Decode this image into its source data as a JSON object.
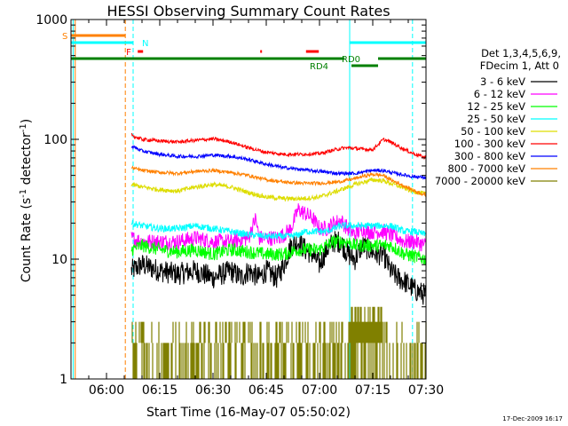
{
  "chart_data": {
    "type": "line",
    "title": "HESSI Observing Summary Count Rates",
    "xlabel": "Start Time (16-May-07 05:50:02)",
    "ylabel_main": "Count Rate (s",
    "ylabel_sup1": "-1",
    "ylabel_mid": " detector",
    "ylabel_sup2": "-1",
    "ylabel_end": ")",
    "yscale": "log",
    "ylim": [
      1,
      1000
    ],
    "xlim_minutes": [
      0,
      100
    ],
    "x_ticks": [
      {
        "label": "06:00",
        "t": 10
      },
      {
        "label": "06:15",
        "t": 25
      },
      {
        "label": "06:30",
        "t": 40
      },
      {
        "label": "06:45",
        "t": 55
      },
      {
        "label": "07:00",
        "t": 70
      },
      {
        "label": "07:15",
        "t": 85
      },
      {
        "label": "07:30",
        "t": 100
      }
    ],
    "y_ticks": [
      {
        "label": "1",
        "v": 1
      },
      {
        "label": "10",
        "v": 10
      },
      {
        "label": "100",
        "v": 100
      },
      {
        "label": "1000",
        "v": 1000
      }
    ],
    "legend_header": [
      "Det 1,3,4,5,6,9,",
      "FDecim 1, Att 0"
    ],
    "series": [
      {
        "name": "3 - 6 keV",
        "color": "#000000",
        "noise": 0.1,
        "t": [
          17,
          20,
          25,
          30,
          35,
          40,
          45,
          48,
          50,
          53,
          55,
          58,
          60,
          62,
          64,
          66,
          68,
          70,
          72,
          74,
          76,
          78,
          80,
          82,
          84,
          86,
          88,
          90,
          92,
          94,
          97,
          100
        ],
        "v": [
          8,
          9,
          8,
          7.5,
          8,
          7,
          8,
          7,
          8,
          7,
          8,
          7,
          9,
          13,
          14,
          12,
          11,
          9,
          12,
          14,
          14,
          11,
          10,
          13,
          12,
          11,
          11,
          8,
          7,
          6.5,
          5.5,
          5
        ]
      },
      {
        "name": "6 - 12 keV",
        "color": "#ff00ff",
        "noise": 0.07,
        "t": [
          17,
          20,
          25,
          30,
          35,
          40,
          45,
          50,
          52,
          53,
          55,
          58,
          60,
          62,
          64,
          66,
          68,
          70,
          72,
          74,
          76,
          78,
          80,
          82,
          84,
          86,
          88,
          90,
          92,
          94,
          97,
          100
        ],
        "v": [
          15,
          14,
          14,
          14,
          15,
          14,
          14,
          15,
          22,
          15,
          15,
          15,
          16,
          18,
          26,
          24,
          22,
          18,
          18,
          20,
          21,
          18,
          16,
          18,
          17,
          17,
          17,
          16,
          15,
          14,
          14,
          13
        ]
      },
      {
        "name": "12 - 25 keV",
        "color": "#00ff00",
        "noise": 0.06,
        "t": [
          17,
          20,
          25,
          30,
          35,
          40,
          45,
          50,
          55,
          58,
          60,
          62,
          64,
          66,
          68,
          70,
          72,
          74,
          76,
          78,
          80,
          82,
          84,
          86,
          88,
          90,
          92,
          94,
          97,
          100
        ],
        "v": [
          12,
          13,
          12,
          11.5,
          12,
          11,
          12,
          11.5,
          11,
          11,
          11,
          11.5,
          12,
          12,
          12,
          12,
          13,
          14,
          14,
          14,
          13,
          13,
          13,
          13,
          13,
          13,
          12,
          11,
          10.5,
          10
        ]
      },
      {
        "name": "25 - 50 keV",
        "color": "#00ffff",
        "noise": 0.03,
        "t": [
          17,
          20,
          25,
          30,
          35,
          40,
          45,
          50,
          55,
          60,
          62,
          64,
          66,
          68,
          70,
          72,
          74,
          76,
          78,
          80,
          82,
          84,
          86,
          88,
          90,
          92,
          94,
          97,
          100
        ],
        "v": [
          20,
          19,
          18,
          18,
          19,
          18,
          17,
          16,
          15.5,
          15.5,
          15.5,
          16,
          17,
          17,
          17,
          17,
          18,
          19,
          19,
          19,
          19,
          19,
          19,
          19,
          19,
          18,
          17,
          17,
          16
        ]
      },
      {
        "name": "50 - 100 keV",
        "color": "#dddd00",
        "noise": 0.02,
        "t": [
          17,
          20,
          25,
          30,
          35,
          40,
          45,
          50,
          55,
          60,
          65,
          70,
          75,
          80,
          85,
          88,
          90,
          93,
          96,
          100
        ],
        "v": [
          42,
          40,
          38,
          37,
          40,
          42,
          40,
          36,
          33,
          32,
          32,
          33,
          37,
          42,
          46,
          45,
          43,
          40,
          37,
          35
        ]
      },
      {
        "name": "100 - 300 keV",
        "color": "#ff0000",
        "noise": 0.015,
        "t": [
          17,
          18,
          20,
          25,
          30,
          35,
          40,
          45,
          50,
          55,
          60,
          65,
          70,
          73,
          76,
          78,
          80,
          82,
          85,
          88,
          90,
          93,
          96,
          100
        ],
        "v": [
          110,
          105,
          100,
          97,
          95,
          98,
          101,
          95,
          85,
          78,
          75,
          75,
          76,
          80,
          84,
          85,
          84,
          83,
          82,
          100,
          95,
          85,
          77,
          70
        ]
      },
      {
        "name": "300 - 800 keV",
        "color": "#0000ff",
        "noise": 0.015,
        "t": [
          17,
          20,
          25,
          30,
          35,
          40,
          45,
          50,
          55,
          60,
          65,
          70,
          75,
          80,
          85,
          88,
          90,
          93,
          96,
          100
        ],
        "v": [
          88,
          80,
          75,
          72,
          72,
          74,
          72,
          68,
          62,
          58,
          56,
          54,
          52,
          52,
          55,
          55,
          53,
          51,
          49,
          48
        ]
      },
      {
        "name": "800 - 7000 keV",
        "color": "#ff8000",
        "noise": 0.015,
        "t": [
          17,
          20,
          25,
          30,
          35,
          40,
          45,
          50,
          55,
          60,
          65,
          70,
          75,
          80,
          82,
          85,
          88,
          90,
          93,
          96,
          100
        ],
        "v": [
          58,
          55,
          53,
          52,
          54,
          55,
          53,
          50,
          46,
          44,
          43,
          43,
          44,
          47,
          49,
          51,
          50,
          46,
          42,
          38,
          34
        ]
      },
      {
        "name": "7000 - 20000 keV",
        "color": "#808000",
        "noise": 0,
        "t": [
          17,
          100
        ],
        "v": [
          2,
          2
        ]
      }
    ],
    "status_bars": [
      {
        "label": "S",
        "color": "#ff8000"
      },
      {
        "label": "N",
        "color": "#00ffff"
      },
      {
        "label": "F",
        "color": "#ff0000"
      },
      {
        "label": "RD0",
        "color": "#008000"
      },
      {
        "label": "RD4",
        "color": "#008000"
      }
    ]
  },
  "footer_date": "17-Dec-2009 16:17",
  "colors": {
    "background": "#ffffff",
    "axes": "#000000"
  }
}
